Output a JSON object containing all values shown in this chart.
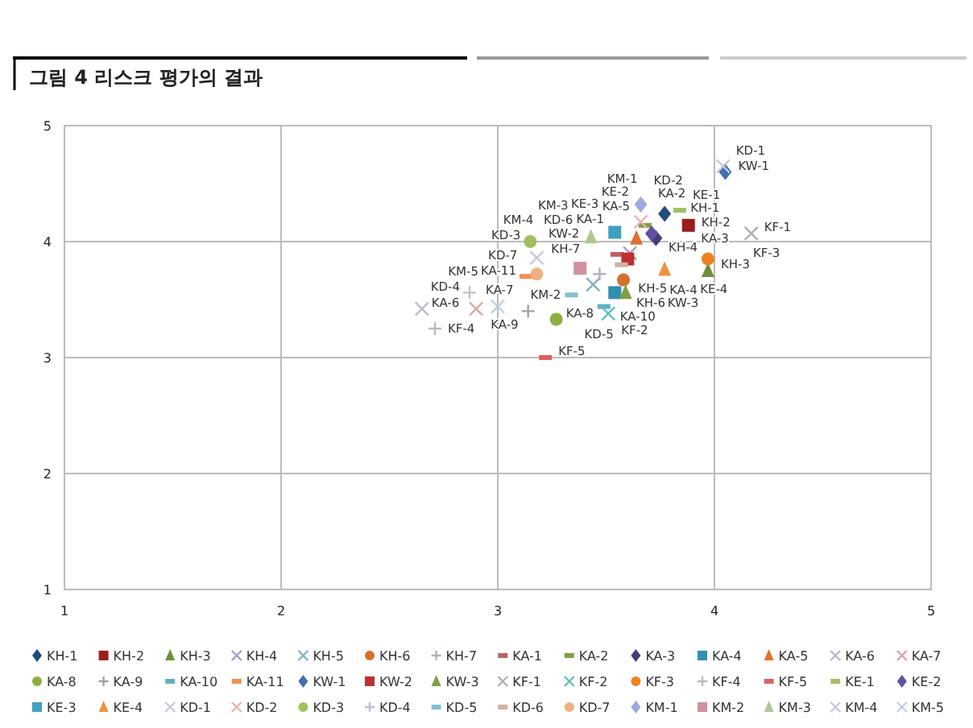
{
  "chart_data": {
    "type": "scatter",
    "title": "그림 4  리스크 평가의 결과",
    "xlim": [
      1,
      5
    ],
    "ylim": [
      1,
      5
    ],
    "xticks": [
      1,
      2,
      3,
      4,
      5
    ],
    "yticks": [
      1,
      2,
      3,
      4,
      5
    ],
    "grid": true,
    "legend": "bottom",
    "series": [
      {
        "name": "KH-1",
        "color": "#1f4e79",
        "marker": "diamond",
        "x": [
          3.77
        ],
        "values": [
          4.24
        ]
      },
      {
        "name": "KH-2",
        "color": "#9b1c1c",
        "marker": "square",
        "x": [
          3.88
        ],
        "values": [
          4.14
        ]
      },
      {
        "name": "KH-3",
        "color": "#6f8f3a",
        "marker": "triangle",
        "x": [
          3.97
        ],
        "values": [
          3.75
        ]
      },
      {
        "name": "KH-4",
        "color": "#a0a0c0",
        "marker": "cross",
        "x": [
          3.61
        ],
        "values": [
          3.9
        ]
      },
      {
        "name": "KH-5",
        "color": "#7fb0c0",
        "marker": "cross",
        "x": [
          3.44
        ],
        "values": [
          3.63
        ]
      },
      {
        "name": "KH-6",
        "color": "#d4712a",
        "marker": "circle",
        "x": [
          3.58
        ],
        "values": [
          3.67
        ]
      },
      {
        "name": "KH-7",
        "color": "#b0b0c0",
        "marker": "plus",
        "x": [
          3.47
        ],
        "values": [
          3.72
        ]
      },
      {
        "name": "KA-1",
        "color": "#c06060",
        "x": [
          3.55
        ],
        "values": [
          3.89
        ]
      },
      {
        "name": "KA-2",
        "color": "#80a040",
        "x": [
          3.68
        ],
        "values": [
          4.14
        ]
      },
      {
        "name": "KA-3",
        "color": "#4a3a7a",
        "marker": "diamond",
        "x": [
          3.73
        ],
        "values": [
          4.03
        ]
      },
      {
        "name": "KA-4",
        "color": "#3090b0",
        "marker": "square",
        "x": [
          3.54
        ],
        "values": [
          3.56
        ]
      },
      {
        "name": "KA-5",
        "color": "#e07030",
        "marker": "triangle",
        "x": [
          3.64
        ],
        "values": [
          4.03
        ]
      },
      {
        "name": "KA-6",
        "color": "#b8b8cc",
        "marker": "cross",
        "x": [
          2.65
        ],
        "values": [
          3.42
        ]
      },
      {
        "name": "KA-7",
        "color": "#e0a0a0",
        "marker": "cross",
        "x": [
          2.9
        ],
        "values": [
          3.42
        ]
      },
      {
        "name": "KA-8",
        "color": "#8cb040",
        "marker": "circle",
        "x": [
          3.27
        ],
        "values": [
          3.33
        ]
      },
      {
        "name": "KA-9",
        "color": "#a0a0b0",
        "marker": "plus",
        "x": [
          3.14
        ],
        "values": [
          3.4
        ]
      },
      {
        "name": "KA-10",
        "color": "#60b0c0",
        "x": [
          3.49
        ],
        "values": [
          3.44
        ]
      },
      {
        "name": "KA-11",
        "color": "#f09050",
        "x": [
          3.13
        ],
        "values": [
          3.7
        ]
      },
      {
        "name": "KW-1",
        "color": "#4070b0",
        "marker": "diamond",
        "x": [
          4.05
        ],
        "values": [
          4.6
        ]
      },
      {
        "name": "KW-2",
        "color": "#c03030",
        "marker": "square",
        "x": [
          3.6
        ],
        "values": [
          3.85
        ]
      },
      {
        "name": "KW-3",
        "color": "#80a040",
        "marker": "triangle",
        "x": [
          3.59
        ],
        "values": [
          3.56
        ]
      },
      {
        "name": "KF-1",
        "color": "#b0b0b0",
        "marker": "cross",
        "x": [
          4.17
        ],
        "values": [
          4.07
        ]
      },
      {
        "name": "KF-2",
        "color": "#60c0c0",
        "marker": "cross",
        "x": [
          3.51
        ],
        "values": [
          3.38
        ]
      },
      {
        "name": "KF-3",
        "color": "#f08020",
        "marker": "circle",
        "x": [
          3.97
        ],
        "values": [
          3.85
        ]
      },
      {
        "name": "KF-4",
        "color": "#b8b8c0",
        "marker": "plus",
        "x": [
          2.71
        ],
        "values": [
          3.25
        ]
      },
      {
        "name": "KF-5",
        "color": "#e06060",
        "x": [
          3.22
        ],
        "values": [
          3.0
        ]
      },
      {
        "name": "KE-1",
        "color": "#a0c060",
        "x": [
          3.84
        ],
        "values": [
          4.27
        ]
      },
      {
        "name": "KE-2",
        "color": "#6050a0",
        "marker": "diamond",
        "x": [
          3.71
        ],
        "values": [
          4.07
        ]
      },
      {
        "name": "KE-3",
        "color": "#40a0c0",
        "marker": "square",
        "x": [
          3.54
        ],
        "values": [
          4.08
        ]
      },
      {
        "name": "KE-4",
        "color": "#f09040",
        "marker": "triangle",
        "x": [
          3.77
        ],
        "values": [
          3.76
        ]
      },
      {
        "name": "KD-1",
        "color": "#c8c8dc",
        "marker": "cross",
        "x": [
          4.04
        ],
        "values": [
          4.65
        ]
      },
      {
        "name": "KD-2",
        "color": "#f0b0b0",
        "marker": "cross",
        "x": [
          3.66
        ],
        "values": [
          4.17
        ]
      },
      {
        "name": "KD-3",
        "color": "#a0c060",
        "marker": "circle",
        "x": [
          3.15
        ],
        "values": [
          4.0
        ]
      },
      {
        "name": "KD-4",
        "color": "#c0c0d0",
        "marker": "plus",
        "x": [
          2.87
        ],
        "values": [
          3.56
        ]
      },
      {
        "name": "KD-5",
        "color": "#80c0d0",
        "x": [
          3.34
        ],
        "values": [
          3.54
        ]
      },
      {
        "name": "KD-6",
        "color": "#d0b0a0",
        "x": [
          3.57
        ],
        "values": [
          3.8
        ]
      },
      {
        "name": "KD-7",
        "color": "#f0b080",
        "marker": "circle",
        "x": [
          3.18
        ],
        "values": [
          3.72
        ]
      },
      {
        "name": "KM-1",
        "color": "#a0a8e0",
        "marker": "diamond",
        "x": [
          3.66
        ],
        "values": [
          4.32
        ]
      },
      {
        "name": "KM-2",
        "color": "#d090a0",
        "marker": "square",
        "x": [
          3.38
        ],
        "values": [
          3.77
        ]
      },
      {
        "name": "KM-3",
        "color": "#b0c890",
        "marker": "triangle",
        "x": [
          3.43
        ],
        "values": [
          4.04
        ]
      },
      {
        "name": "KM-4",
        "color": "#c8c8e0",
        "marker": "cross",
        "x": [
          3.18
        ],
        "values": [
          3.86
        ]
      },
      {
        "name": "KM-5",
        "color": "#c0d0e0",
        "marker": "cross",
        "x": [
          3.0
        ],
        "values": [
          3.44
        ]
      }
    ]
  }
}
